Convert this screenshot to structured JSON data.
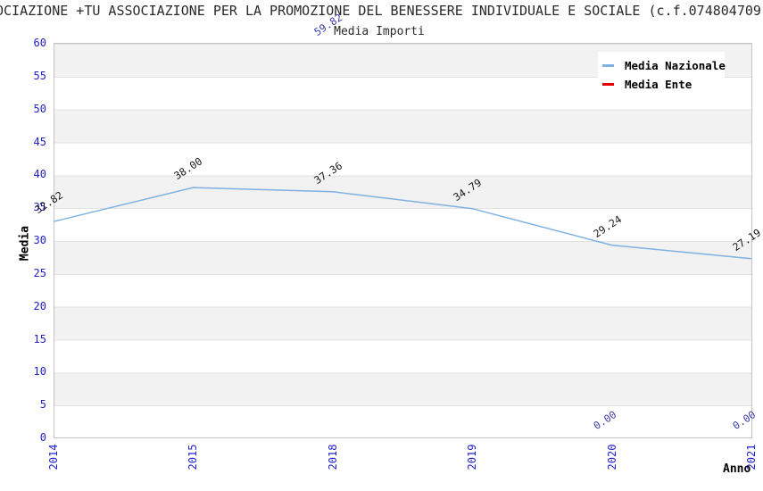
{
  "header": {
    "title_visible": "OCIAZIONE +TU ASSOCIAZIONE PER LA PROMOZIONE DEL BENESSERE INDIVIDUALE E SOCIALE (c.f.074804709"
  },
  "chart_data": {
    "type": "line",
    "title": "Media Importi",
    "xlabel": "Anno",
    "ylabel": "Media",
    "ylim": [
      0,
      60
    ],
    "yticks": [
      0,
      5,
      10,
      15,
      20,
      25,
      30,
      35,
      40,
      45,
      50,
      55,
      60
    ],
    "categories": [
      "2014",
      "2015",
      "2018",
      "2019",
      "2020",
      "2021"
    ],
    "series": [
      {
        "name": "Media Nazionale",
        "color": "#7FB2E3",
        "label_color": "#1A1A1A",
        "line_visible": true,
        "values": [
          32.82,
          38.0,
          37.36,
          34.79,
          29.24,
          27.19
        ]
      },
      {
        "name": "Media Ente",
        "color": "#E60000",
        "label_color": "#3E3EA8",
        "line_visible": false,
        "values": [
          null,
          null,
          59.82,
          null,
          0.0,
          0.0
        ]
      }
    ],
    "grid": "horizontal-bands",
    "legend_position": "top-right"
  },
  "colors": {
    "tick-blue": "#2222CC",
    "band": "#F2F2F2",
    "grid-line": "#E2E2E2",
    "plot-border": "#C4C4C4",
    "title-color": "#2A2A2A",
    "text-black": "#1A1A1A"
  }
}
